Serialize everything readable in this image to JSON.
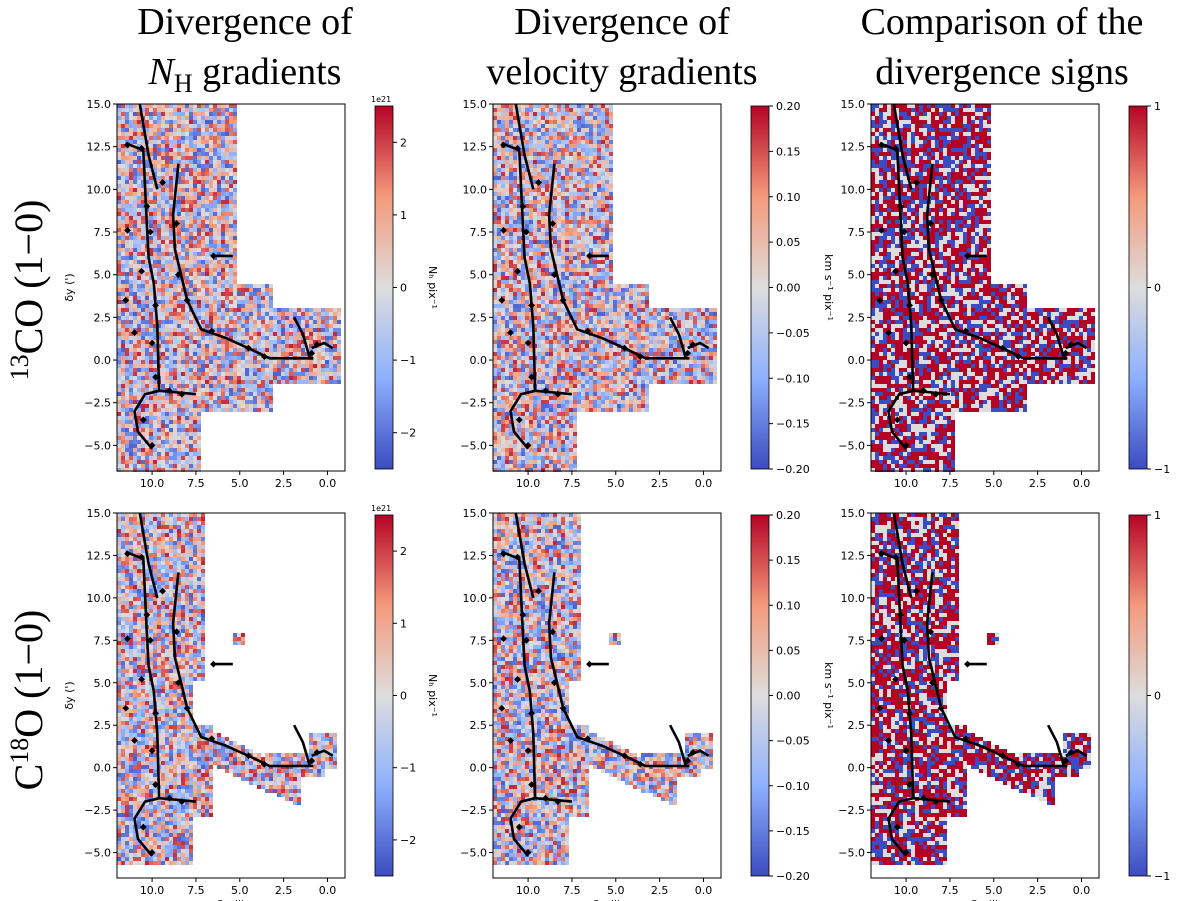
{
  "column_titles": [
    {
      "line1": "Divergence of",
      "line2_main": "N",
      "line2_sub": "H",
      "line2_rest": " gradients"
    },
    {
      "line1": "Divergence of",
      "line2": "velocity gradients"
    },
    {
      "line1": "Comparison of the",
      "line2": "divergence signs"
    }
  ],
  "row_labels": [
    {
      "sup": "13",
      "main": "CO (1−0)"
    },
    {
      "pre": "C",
      "sup": "18",
      "main": "O (1−0)"
    }
  ],
  "colors": {
    "cmap_low": "#3b4cc0",
    "cmap_mid": "#dddddd",
    "cmap_high": "#b40426",
    "filament": "#000000",
    "axes": "#000000"
  },
  "chart_data": [
    {
      "type": "heatmap",
      "panel": "13CO-divergence-NH",
      "xlabel": "",
      "ylabel": "δy (')",
      "xlim": [
        12,
        -1
      ],
      "ylim": [
        -6.5,
        15
      ],
      "x_ticks": [
        "10.0",
        "7.5",
        "5.0",
        "2.5",
        "0.0"
      ],
      "y_ticks": [
        "15.0",
        "12.5",
        "10.0",
        "7.5",
        "5.0",
        "2.5",
        "0.0",
        "−2.5",
        "−5.0"
      ],
      "colorbar": {
        "label": "Nₕ pix⁻¹",
        "label_sub": "H",
        "offset": "1e21",
        "range": [
          -2.5,
          2.5
        ],
        "ticks": [
          "2",
          "1",
          "0",
          "−1",
          "−2"
        ]
      }
    },
    {
      "type": "heatmap",
      "panel": "13CO-divergence-velocity",
      "xlabel": "",
      "ylabel": "",
      "xlim": [
        12,
        -1
      ],
      "ylim": [
        -6.5,
        15
      ],
      "x_ticks": [
        "10.0",
        "7.5",
        "5.0",
        "2.5",
        "0.0"
      ],
      "y_ticks": [
        "15.0",
        "12.5",
        "10.0",
        "7.5",
        "5.0",
        "2.5",
        "0.0",
        "−2.5",
        "−5.0"
      ],
      "colorbar": {
        "label": "km s⁻¹ pix⁻¹",
        "offset": "",
        "range": [
          -0.2,
          0.2
        ],
        "ticks": [
          "0.20",
          "0.15",
          "0.10",
          "0.05",
          "0.00",
          "−0.05",
          "−0.10",
          "−0.15",
          "−0.20"
        ]
      }
    },
    {
      "type": "heatmap",
      "panel": "13CO-sign-comparison",
      "xlabel": "",
      "ylabel": "",
      "xlim": [
        12,
        -1
      ],
      "ylim": [
        -6.5,
        15
      ],
      "x_ticks": [
        "10.0",
        "7.5",
        "5.0",
        "2.5",
        "0.0"
      ],
      "y_ticks": [
        "15.0",
        "12.5",
        "10.0",
        "7.5",
        "5.0",
        "2.5",
        "0.0",
        "−2.5",
        "−5.0"
      ],
      "colorbar": {
        "label": "",
        "offset": "",
        "range": [
          -1,
          1
        ],
        "ticks": [
          "1",
          "0",
          "−1"
        ]
      }
    },
    {
      "type": "heatmap",
      "panel": "C18O-divergence-NH",
      "xlabel": "δx (')",
      "ylabel": "δy (')",
      "xlim": [
        12,
        -1
      ],
      "ylim": [
        -6.5,
        15
      ],
      "x_ticks": [
        "10.0",
        "7.5",
        "5.0",
        "2.5",
        "0.0"
      ],
      "y_ticks": [
        "15.0",
        "12.5",
        "10.0",
        "7.5",
        "5.0",
        "2.5",
        "0.0",
        "−2.5",
        "−5.0"
      ],
      "colorbar": {
        "label": "Nₕ pix⁻¹",
        "offset": "1e21",
        "range": [
          -2.5,
          2.5
        ],
        "ticks": [
          "2",
          "1",
          "0",
          "−1",
          "−2"
        ]
      }
    },
    {
      "type": "heatmap",
      "panel": "C18O-divergence-velocity",
      "xlabel": "δx (')",
      "ylabel": "",
      "xlim": [
        12,
        -1
      ],
      "ylim": [
        -6.5,
        15
      ],
      "x_ticks": [
        "10.0",
        "7.5",
        "5.0",
        "2.5",
        "0.0"
      ],
      "y_ticks": [
        "15.0",
        "12.5",
        "10.0",
        "7.5",
        "5.0",
        "2.5",
        "0.0",
        "−2.5",
        "−5.0"
      ],
      "colorbar": {
        "label": "km s⁻¹ pix⁻¹",
        "offset": "",
        "range": [
          -0.2,
          0.2
        ],
        "ticks": [
          "0.20",
          "0.15",
          "0.10",
          "0.05",
          "0.00",
          "−0.05",
          "−0.10",
          "−0.15",
          "−0.20"
        ]
      }
    },
    {
      "type": "heatmap",
      "panel": "C18O-sign-comparison",
      "xlabel": "δx (')",
      "ylabel": "",
      "xlim": [
        12,
        -1
      ],
      "ylim": [
        -6.5,
        15
      ],
      "x_ticks": [
        "10.0",
        "7.5",
        "5.0",
        "2.5",
        "0.0"
      ],
      "y_ticks": [
        "15.0",
        "12.5",
        "10.0",
        "7.5",
        "5.0",
        "2.5",
        "0.0",
        "−2.5",
        "−5.0"
      ],
      "colorbar": {
        "label": "",
        "offset": "",
        "range": [
          -1,
          1
        ],
        "ticks": [
          "1",
          "0",
          "−1"
        ]
      }
    }
  ]
}
